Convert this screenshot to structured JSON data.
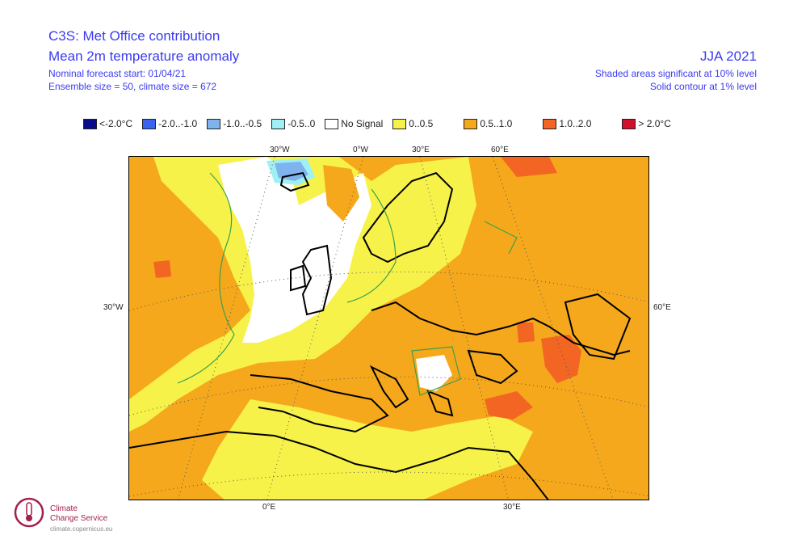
{
  "header": {
    "title_line1": "C3S: Met Office contribution",
    "title_line2": "Mean 2m temperature anomaly",
    "forecast_start": "Nominal forecast start: 01/04/21",
    "ensemble_info": "Ensemble size = 50, climate size = 672",
    "season": "JJA 2021",
    "note_shaded": "Shaded areas significant at 10% level",
    "note_contour": "Solid contour at 1% level"
  },
  "legend": [
    {
      "label": "<-2.0°C",
      "color": "#0a0a8c"
    },
    {
      "label": "-2.0..-1.0",
      "color": "#3a63f0"
    },
    {
      "label": "-1.0..-0.5",
      "color": "#7fb3ee"
    },
    {
      "label": "-0.5..0",
      "color": "#9ff0f5"
    },
    {
      "label": "No Signal",
      "color": "#ffffff"
    },
    {
      "label": "0..0.5",
      "color": "#f7f24a"
    },
    {
      "label": "0.5..1.0",
      "color": "#f5a81c"
    },
    {
      "label": "1.0..2.0",
      "color": "#f26522"
    },
    {
      "label": "> 2.0°C",
      "color": "#d0112b"
    }
  ],
  "graticule_labels": {
    "top": [
      "30°W",
      "0°W",
      "30°E",
      "60°E"
    ],
    "bottom": [
      "0°E",
      "30°E"
    ],
    "left": "30°W",
    "right": "60°E"
  },
  "logo": {
    "line1": "Climate",
    "line2": "Change Service",
    "url": "climate.copernicus.eu"
  }
}
